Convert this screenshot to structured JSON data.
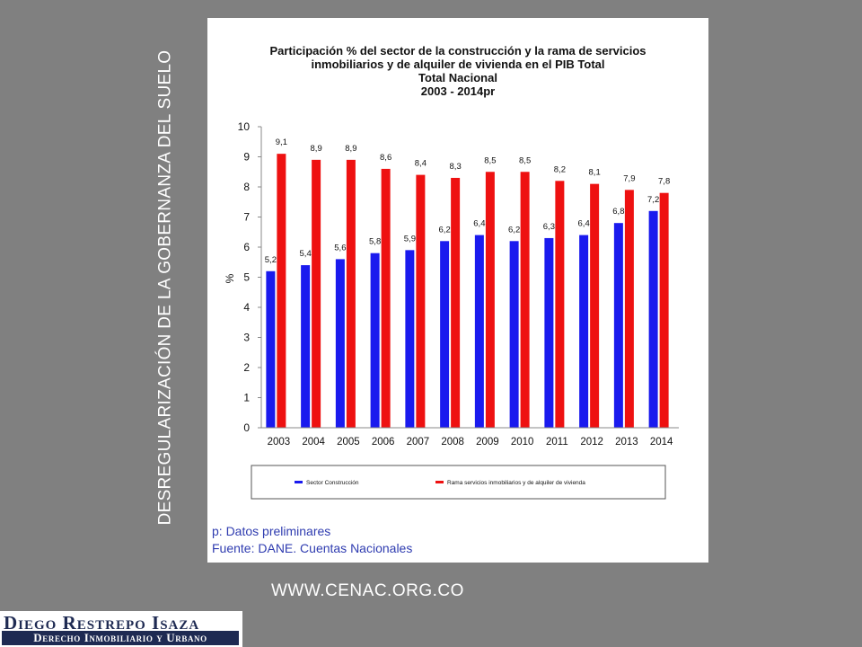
{
  "side_title": "DESREGULARIZACIÓN DE LA GOBERNANZA DEL SUELO",
  "website": "WWW.CENAC.ORG.CO",
  "logo": {
    "name": "Diego Restrepo Isaza",
    "subtitle": "Derecho Inmobiliario y Urbano"
  },
  "notes": {
    "preliminary": "p: Datos preliminares",
    "source": "Fuente: DANE. Cuentas Nacionales"
  },
  "colors": {
    "series_1": "#1a1aee",
    "series_2": "#ee1111"
  },
  "chart_data": {
    "type": "bar",
    "title_lines": [
      "Participación % del sector de la construcción y la rama de servicios",
      "inmobiliarios y de alquiler de vivienda en el PIB Total",
      "Total Nacional",
      "2003 - 2014pr"
    ],
    "xlabel": "",
    "ylabel": "%",
    "ylim": [
      0,
      10
    ],
    "yticks": [
      0,
      1,
      2,
      3,
      4,
      5,
      6,
      7,
      8,
      9,
      10
    ],
    "grid": false,
    "legend_position": "bottom",
    "categories": [
      "2003",
      "2004",
      "2005",
      "2006",
      "2007",
      "2008",
      "2009",
      "2010",
      "2011",
      "2012",
      "2013",
      "2014"
    ],
    "series": [
      {
        "name": "Sector Construcción",
        "values": [
          5.2,
          5.4,
          5.6,
          5.8,
          5.9,
          6.2,
          6.4,
          6.2,
          6.3,
          6.4,
          6.8,
          7.2
        ],
        "labels": [
          "5,2",
          "5,4",
          "5,6",
          "5,8",
          "5,9",
          "6,2",
          "6,4",
          "6,2",
          "6,3",
          "6,4",
          "6,8",
          "7,2"
        ]
      },
      {
        "name": "Rama servicios inmobiliarios y de alquiler de vivienda",
        "values": [
          9.1,
          8.9,
          8.9,
          8.6,
          8.4,
          8.3,
          8.5,
          8.5,
          8.2,
          8.1,
          7.9,
          7.8
        ],
        "labels": [
          "9,1",
          "8,9",
          "8,9",
          "8,6",
          "8,4",
          "8,3",
          "8,5",
          "8,5",
          "8,2",
          "8,1",
          "7,9",
          "7,8"
        ]
      }
    ]
  }
}
